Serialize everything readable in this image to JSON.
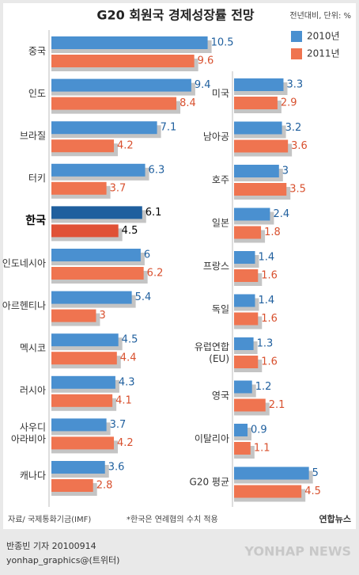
{
  "chart_data": [
    {
      "type": "hbar",
      "title": "G20 회원국 경제성장률 전망",
      "unit": "전년대비, 단위: %",
      "categories": [
        "중국",
        "인도",
        "브라질",
        "터키",
        "한국",
        "인도네시아",
        "아르헨티나",
        "멕시코",
        "러시아",
        "사우디\n아라비아",
        "캐나다"
      ],
      "series": [
        {
          "name": "2010년",
          "color": "#4a90d0",
          "values": [
            10.5,
            9.4,
            7.1,
            6.3,
            6.1,
            6,
            5.4,
            4.5,
            4.3,
            3.7,
            3.6
          ]
        },
        {
          "name": "2011년",
          "color": "#ef7450",
          "values": [
            9.6,
            8.4,
            4.2,
            3.7,
            4.5,
            6.2,
            3,
            4.4,
            4.1,
            4.2,
            2.8
          ]
        }
      ],
      "highlight": {
        "category": 4,
        "colors": [
          "#1f5f9e",
          "#e05136"
        ]
      },
      "xlim": [
        0,
        11
      ]
    },
    {
      "type": "hbar",
      "categories": [
        "미국",
        "남아공",
        "호주",
        "일본",
        "프랑스",
        "독일",
        "유럽연합\n(EU)",
        "영국",
        "이탈리아",
        "G20 평균"
      ],
      "series": [
        {
          "color": "#4a90d0",
          "values": [
            3.3,
            3.2,
            3,
            2.4,
            1.4,
            1.4,
            1.3,
            1.2,
            0.9,
            5
          ]
        },
        {
          "color": "#ef7450",
          "values": [
            2.9,
            3.6,
            3.5,
            1.8,
            1.6,
            1.6,
            1.6,
            2.1,
            1.1,
            4.5
          ]
        }
      ],
      "xlim": [
        0,
        7.5
      ]
    }
  ],
  "footer": {
    "source": "자료/ 국제통화기금(IMF)",
    "note": "*한국은 연례협의 수치 적용",
    "logo": "연합뉴스",
    "byline": "반종빈 기자 20100914",
    "contact": "yonhap_graphics@(트위터)",
    "watermark": "YONHAP NEWS"
  }
}
